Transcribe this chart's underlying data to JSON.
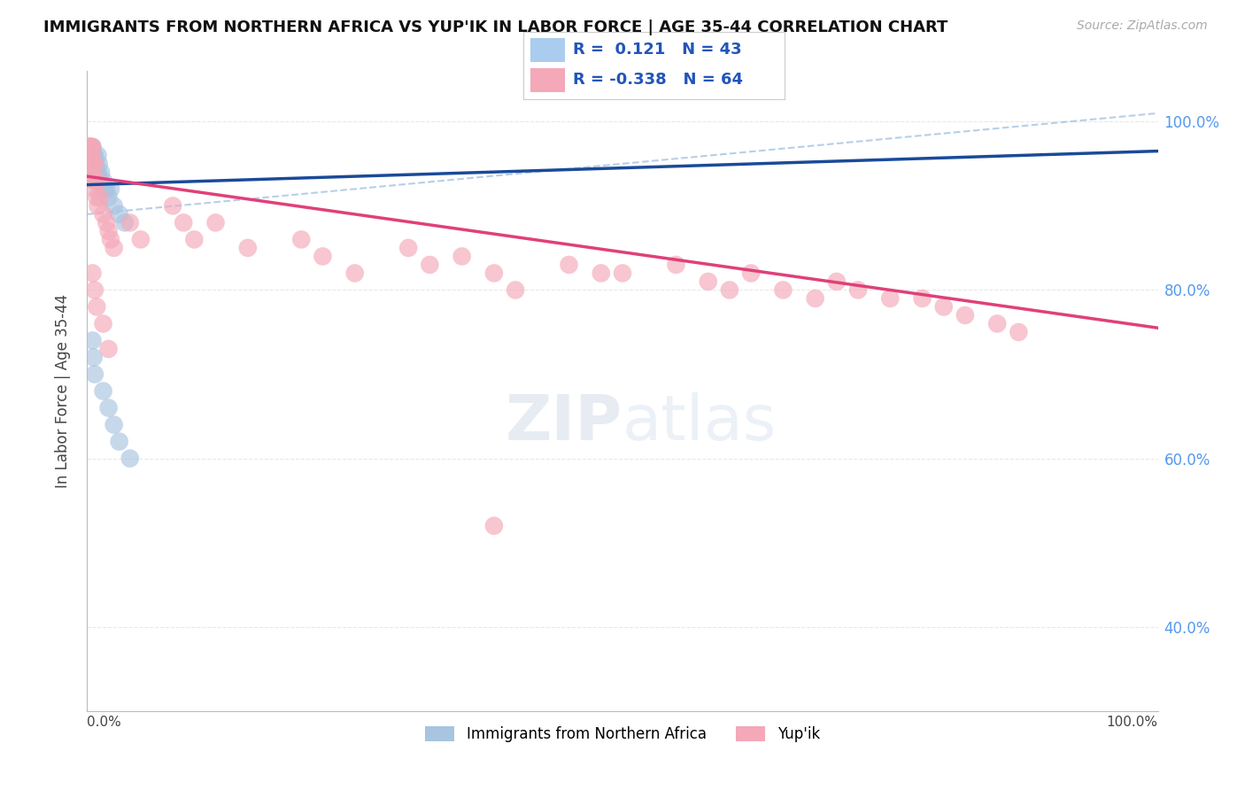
{
  "title": "IMMIGRANTS FROM NORTHERN AFRICA VS YUP'IK IN LABOR FORCE | AGE 35-44 CORRELATION CHART",
  "source": "Source: ZipAtlas.com",
  "ylabel": "In Labor Force | Age 35-44",
  "legend_blue_r": "0.121",
  "legend_blue_n": "43",
  "legend_pink_r": "-0.338",
  "legend_pink_n": "64",
  "blue_color": "#a8c4e0",
  "pink_color": "#f4a8b8",
  "trend_blue_color": "#1a4a99",
  "trend_pink_color": "#e0407a",
  "trend_dash_color": "#99bbdd",
  "blue_x": [
    0.001,
    0.001,
    0.001,
    0.001,
    0.002,
    0.002,
    0.002,
    0.003,
    0.003,
    0.003,
    0.004,
    0.004,
    0.004,
    0.005,
    0.005,
    0.005,
    0.006,
    0.006,
    0.007,
    0.007,
    0.008,
    0.009,
    0.01,
    0.01,
    0.011,
    0.012,
    0.013,
    0.015,
    0.016,
    0.018,
    0.02,
    0.022,
    0.025,
    0.03,
    0.035,
    0.005,
    0.006,
    0.007,
    0.015,
    0.02,
    0.025,
    0.03,
    0.04
  ],
  "blue_y": [
    0.97,
    0.96,
    0.95,
    0.94,
    0.97,
    0.95,
    0.94,
    0.96,
    0.95,
    0.94,
    0.97,
    0.96,
    0.95,
    0.97,
    0.96,
    0.95,
    0.96,
    0.94,
    0.96,
    0.95,
    0.95,
    0.94,
    0.96,
    0.94,
    0.95,
    0.93,
    0.94,
    0.93,
    0.92,
    0.92,
    0.91,
    0.92,
    0.9,
    0.89,
    0.88,
    0.74,
    0.72,
    0.7,
    0.68,
    0.66,
    0.64,
    0.62,
    0.6
  ],
  "pink_x": [
    0.001,
    0.001,
    0.001,
    0.002,
    0.002,
    0.003,
    0.003,
    0.003,
    0.004,
    0.004,
    0.005,
    0.005,
    0.006,
    0.006,
    0.007,
    0.007,
    0.008,
    0.009,
    0.01,
    0.01,
    0.012,
    0.015,
    0.018,
    0.02,
    0.022,
    0.025,
    0.005,
    0.007,
    0.009,
    0.015,
    0.02,
    0.04,
    0.05,
    0.08,
    0.09,
    0.1,
    0.12,
    0.15,
    0.2,
    0.22,
    0.25,
    0.3,
    0.32,
    0.35,
    0.38,
    0.4,
    0.45,
    0.48,
    0.5,
    0.55,
    0.58,
    0.6,
    0.62,
    0.65,
    0.68,
    0.7,
    0.72,
    0.75,
    0.78,
    0.8,
    0.82,
    0.85,
    0.87,
    0.38
  ],
  "pink_y": [
    0.97,
    0.96,
    0.95,
    0.97,
    0.95,
    0.97,
    0.96,
    0.94,
    0.96,
    0.94,
    0.97,
    0.95,
    0.95,
    0.93,
    0.95,
    0.92,
    0.93,
    0.91,
    0.93,
    0.9,
    0.91,
    0.89,
    0.88,
    0.87,
    0.86,
    0.85,
    0.82,
    0.8,
    0.78,
    0.76,
    0.73,
    0.88,
    0.86,
    0.9,
    0.88,
    0.86,
    0.88,
    0.85,
    0.86,
    0.84,
    0.82,
    0.85,
    0.83,
    0.84,
    0.82,
    0.8,
    0.83,
    0.82,
    0.82,
    0.83,
    0.81,
    0.8,
    0.82,
    0.8,
    0.79,
    0.81,
    0.8,
    0.79,
    0.79,
    0.78,
    0.77,
    0.76,
    0.75,
    0.52
  ],
  "xlim": [
    0.0,
    1.0
  ],
  "ylim": [
    0.3,
    1.06
  ],
  "yticks": [
    0.4,
    0.6,
    0.8,
    1.0
  ],
  "ytick_labels": [
    "40.0%",
    "60.0%",
    "80.0%",
    "100.0%"
  ],
  "blue_trend_x0": 0.0,
  "blue_trend_y0": 0.925,
  "blue_trend_x1": 1.0,
  "blue_trend_y1": 0.965,
  "pink_trend_x0": 0.0,
  "pink_trend_y0": 0.935,
  "pink_trend_x1": 1.0,
  "pink_trend_y1": 0.755,
  "dash_trend_x0": 0.0,
  "dash_trend_y0": 0.89,
  "dash_trend_x1": 1.0,
  "dash_trend_y1": 1.01,
  "background_color": "#ffffff",
  "grid_color": "#e8e8e8"
}
